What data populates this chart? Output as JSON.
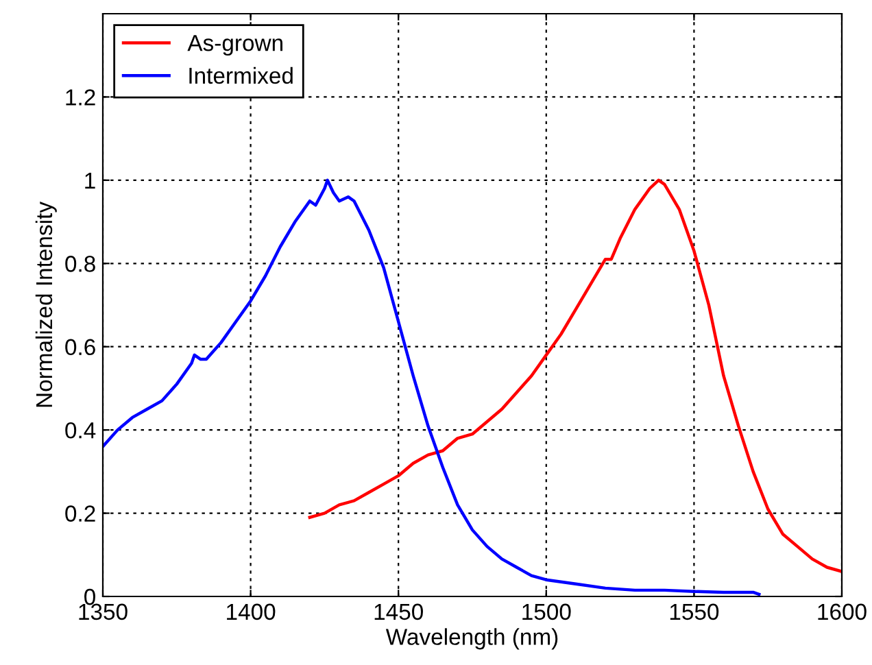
{
  "chart_data": {
    "type": "line",
    "xlabel": "Wavelength (nm)",
    "ylabel": "Normalized Intensity",
    "xlim": [
      1350,
      1600
    ],
    "xticks": [
      1350,
      1400,
      1450,
      1500,
      1550,
      1600
    ],
    "ylim": [
      0,
      1.4
    ],
    "yticks": [
      0,
      0.2,
      0.4,
      0.6,
      0.8,
      1,
      1.2
    ],
    "grid": true,
    "legend": "top left",
    "line_style": "solid",
    "marker": "none",
    "series": [
      {
        "name": "As-grown",
        "color": "#ff0000",
        "x": [
          1420,
          1425,
          1430,
          1435,
          1440,
          1445,
          1450,
          1455,
          1460,
          1465,
          1470,
          1475,
          1480,
          1485,
          1490,
          1495,
          1500,
          1505,
          1510,
          1515,
          1520,
          1522,
          1525,
          1530,
          1535,
          1538,
          1540,
          1545,
          1550,
          1555,
          1560,
          1565,
          1570,
          1575,
          1580,
          1585,
          1590,
          1595,
          1600
        ],
        "values": [
          0.19,
          0.2,
          0.22,
          0.23,
          0.25,
          0.27,
          0.29,
          0.32,
          0.34,
          0.35,
          0.38,
          0.39,
          0.42,
          0.45,
          0.49,
          0.53,
          0.58,
          0.63,
          0.69,
          0.75,
          0.81,
          0.81,
          0.86,
          0.93,
          0.98,
          1.0,
          0.99,
          0.93,
          0.83,
          0.7,
          0.53,
          0.41,
          0.3,
          0.21,
          0.15,
          0.12,
          0.09,
          0.07,
          0.06
        ]
      },
      {
        "name": "Intermixed",
        "color": "#0000ff",
        "x": [
          1350,
          1355,
          1360,
          1365,
          1370,
          1375,
          1380,
          1381,
          1383,
          1385,
          1390,
          1395,
          1400,
          1405,
          1410,
          1415,
          1420,
          1422,
          1425,
          1426,
          1428,
          1430,
          1433,
          1435,
          1440,
          1445,
          1450,
          1455,
          1460,
          1465,
          1470,
          1475,
          1480,
          1485,
          1490,
          1495,
          1500,
          1510,
          1520,
          1530,
          1540,
          1550,
          1560,
          1570,
          1572
        ],
        "values": [
          0.36,
          0.4,
          0.43,
          0.45,
          0.47,
          0.51,
          0.56,
          0.58,
          0.57,
          0.57,
          0.61,
          0.66,
          0.71,
          0.77,
          0.84,
          0.9,
          0.95,
          0.94,
          0.98,
          1.0,
          0.97,
          0.95,
          0.96,
          0.95,
          0.88,
          0.79,
          0.66,
          0.53,
          0.41,
          0.31,
          0.22,
          0.16,
          0.12,
          0.09,
          0.07,
          0.05,
          0.04,
          0.03,
          0.02,
          0.015,
          0.015,
          0.012,
          0.01,
          0.01,
          0.005
        ]
      }
    ]
  }
}
